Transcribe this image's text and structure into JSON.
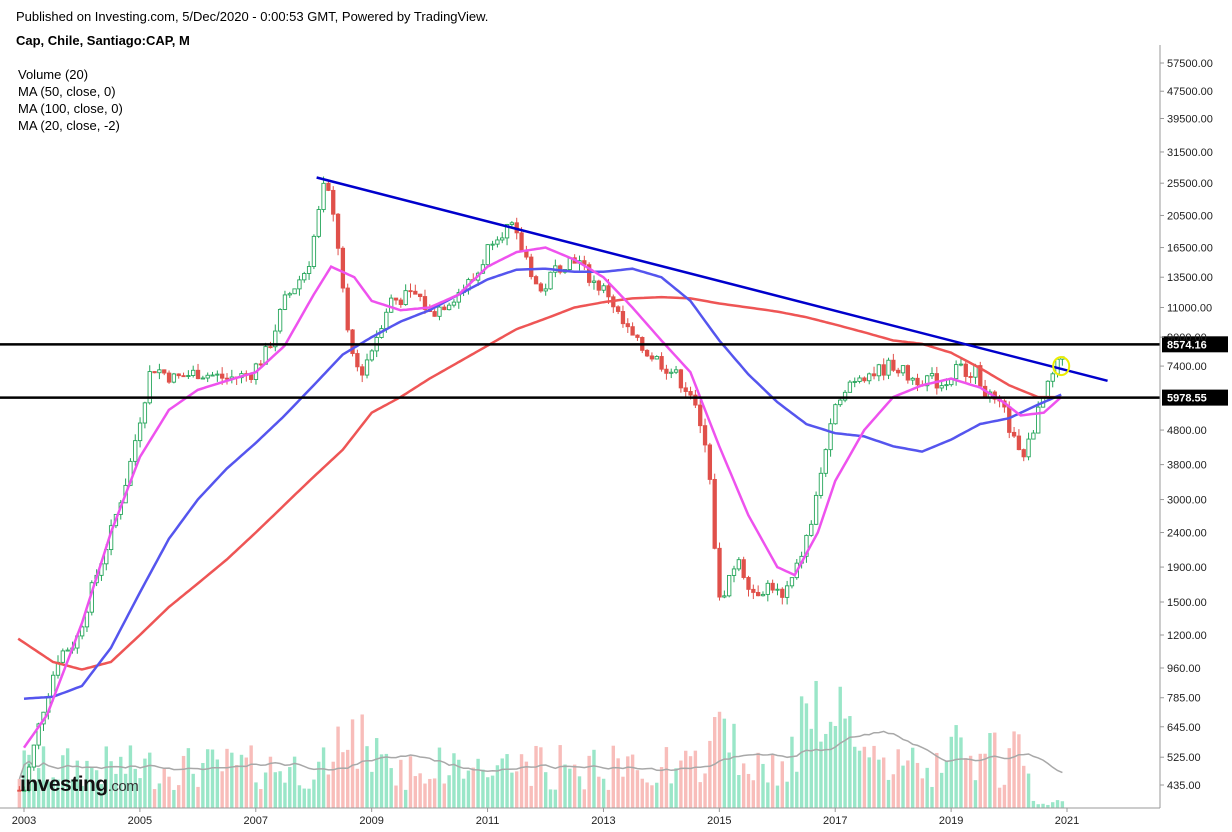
{
  "header": {
    "published": "Published on Investing.com, 5/Dec/2020 - 0:00:53 GMT, Powered by TradingView.",
    "symbol": "Cap, Chile, Santiago:CAP, M"
  },
  "legend": [
    "Volume (20)",
    "MA (50, close, 0)",
    "MA (100, close, 0)",
    "MA (20, close, -2)"
  ],
  "logo": {
    "main": "investing",
    "suffix": ".com"
  },
  "colors": {
    "up": "#26a65b",
    "down": "#e0504a",
    "up_fill": "#ffffff",
    "down_fill": "#e0504a",
    "vol_up": "#8fe3c2",
    "vol_down": "#f7b6b2",
    "vol_ma": "#a8a8a8",
    "ma20": "#ee52ee",
    "ma50": "#5555ee",
    "ma100": "#ee5555",
    "trendline": "#0000cc",
    "levels": "#000000",
    "highlight": "#eeee00"
  },
  "chart_data": {
    "type": "candlestick",
    "yscale": "log",
    "ylim": [
      400,
      65000
    ],
    "xlim": [
      2002.9,
      2021.9
    ],
    "x_ticks": [
      "2003",
      "2005",
      "2007",
      "2009",
      "2011",
      "2013",
      "2015",
      "2017",
      "2019",
      "2021"
    ],
    "y_ticks": [
      "57500.00",
      "47500.00",
      "39500.00",
      "31500.00",
      "25500.00",
      "20500.00",
      "16500.00",
      "13500.00",
      "11000.00",
      "9000.00",
      "7400.00",
      "4800.00",
      "3800.00",
      "3000.00",
      "2400.00",
      "1900.00",
      "1500.00",
      "1200.00",
      "960.00",
      "785.00",
      "645.00",
      "525.00",
      "435.00"
    ],
    "price_labels": [
      "8574.16",
      "5978.55"
    ],
    "horizontal_levels": [
      8574.16,
      5978.55
    ],
    "trendline": [
      [
        2008.05,
        26500
      ],
      [
        2021.7,
        6700
      ]
    ],
    "price_anchors": [
      [
        2003.0,
        420
      ],
      [
        2003.3,
        700
      ],
      [
        2003.6,
        1050
      ],
      [
        2003.9,
        1150
      ],
      [
        2004.2,
        1700
      ],
      [
        2004.5,
        2400
      ],
      [
        2004.8,
        3600
      ],
      [
        2005.0,
        5200
      ],
      [
        2005.2,
        7400
      ],
      [
        2005.6,
        6800
      ],
      [
        2006.0,
        7100
      ],
      [
        2006.5,
        6800
      ],
      [
        2006.9,
        7000
      ],
      [
        2007.2,
        8200
      ],
      [
        2007.5,
        11500
      ],
      [
        2007.9,
        14500
      ],
      [
        2008.2,
        26000
      ],
      [
        2008.4,
        18000
      ],
      [
        2008.6,
        8600
      ],
      [
        2008.8,
        7000
      ],
      [
        2009.0,
        8300
      ],
      [
        2009.3,
        11500
      ],
      [
        2009.8,
        12000
      ],
      [
        2010.0,
        10500
      ],
      [
        2010.4,
        11800
      ],
      [
        2010.8,
        13500
      ],
      [
        2011.1,
        18000
      ],
      [
        2011.4,
        19000
      ],
      [
        2011.7,
        15000
      ],
      [
        2011.9,
        12000
      ],
      [
        2012.2,
        14500
      ],
      [
        2012.5,
        15500
      ],
      [
        2012.8,
        13200
      ],
      [
        2013.1,
        12000
      ],
      [
        2013.3,
        10000
      ],
      [
        2013.6,
        8500
      ],
      [
        2013.9,
        7800
      ],
      [
        2014.2,
        7100
      ],
      [
        2014.5,
        6200
      ],
      [
        2014.8,
        4000
      ],
      [
        2015.0,
        1500
      ],
      [
        2015.3,
        2000
      ],
      [
        2015.6,
        1600
      ],
      [
        2015.9,
        1700
      ],
      [
        2016.1,
        1500
      ],
      [
        2016.3,
        1800
      ],
      [
        2016.6,
        2600
      ],
      [
        2016.8,
        4000
      ],
      [
        2017.1,
        6300
      ],
      [
        2017.4,
        7000
      ],
      [
        2017.7,
        7100
      ],
      [
        2018.0,
        7500
      ],
      [
        2018.3,
        6800
      ],
      [
        2018.6,
        6800
      ],
      [
        2018.9,
        6500
      ],
      [
        2019.1,
        7300
      ],
      [
        2019.4,
        7200
      ],
      [
        2019.7,
        5800
      ],
      [
        2019.9,
        5500
      ],
      [
        2020.2,
        3900
      ],
      [
        2020.4,
        4800
      ],
      [
        2020.6,
        6000
      ],
      [
        2020.8,
        7200
      ],
      [
        2020.95,
        8100
      ]
    ],
    "ma20_anchors": [
      [
        2003.0,
        560
      ],
      [
        2003.4,
        700
      ],
      [
        2004.0,
        1300
      ],
      [
        2004.5,
        2400
      ],
      [
        2005.0,
        4000
      ],
      [
        2005.5,
        5500
      ],
      [
        2006.0,
        6300
      ],
      [
        2006.5,
        6700
      ],
      [
        2007.0,
        7100
      ],
      [
        2007.5,
        8500
      ],
      [
        2008.0,
        12000
      ],
      [
        2008.3,
        14500
      ],
      [
        2008.7,
        13500
      ],
      [
        2009.0,
        11500
      ],
      [
        2009.5,
        10800
      ],
      [
        2010.0,
        11000
      ],
      [
        2010.5,
        12000
      ],
      [
        2011.0,
        14500
      ],
      [
        2011.5,
        16000
      ],
      [
        2012.0,
        16500
      ],
      [
        2012.5,
        15200
      ],
      [
        2013.0,
        13500
      ],
      [
        2013.5,
        11000
      ],
      [
        2014.0,
        8800
      ],
      [
        2014.5,
        7100
      ],
      [
        2015.0,
        4300
      ],
      [
        2015.5,
        2700
      ],
      [
        2016.0,
        1900
      ],
      [
        2016.3,
        1800
      ],
      [
        2016.7,
        2400
      ],
      [
        2017.0,
        3400
      ],
      [
        2017.5,
        4800
      ],
      [
        2018.0,
        6000
      ],
      [
        2018.5,
        6500
      ],
      [
        2019.0,
        6800
      ],
      [
        2019.5,
        6400
      ],
      [
        2019.9,
        5800
      ],
      [
        2020.2,
        5300
      ],
      [
        2020.6,
        5400
      ],
      [
        2020.9,
        6000
      ]
    ],
    "ma50_anchors": [
      [
        2003.0,
        780
      ],
      [
        2003.5,
        790
      ],
      [
        2004.0,
        850
      ],
      [
        2004.5,
        1100
      ],
      [
        2005.0,
        1600
      ],
      [
        2005.5,
        2300
      ],
      [
        2006.0,
        3000
      ],
      [
        2006.5,
        3700
      ],
      [
        2007.0,
        4400
      ],
      [
        2007.5,
        5300
      ],
      [
        2008.0,
        6500
      ],
      [
        2008.5,
        8000
      ],
      [
        2009.0,
        9000
      ],
      [
        2009.5,
        10000
      ],
      [
        2010.0,
        10800
      ],
      [
        2010.5,
        12000
      ],
      [
        2011.0,
        13300
      ],
      [
        2011.5,
        14200
      ],
      [
        2012.0,
        14300
      ],
      [
        2012.5,
        14000
      ],
      [
        2013.0,
        14000
      ],
      [
        2013.5,
        14300
      ],
      [
        2014.0,
        13500
      ],
      [
        2014.5,
        11500
      ],
      [
        2015.0,
        8800
      ],
      [
        2015.5,
        7000
      ],
      [
        2016.0,
        5800
      ],
      [
        2016.5,
        5000
      ],
      [
        2017.0,
        4700
      ],
      [
        2017.5,
        4600
      ],
      [
        2018.0,
        4300
      ],
      [
        2018.5,
        4150
      ],
      [
        2019.0,
        4500
      ],
      [
        2019.5,
        5000
      ],
      [
        2020.0,
        5200
      ],
      [
        2020.5,
        5700
      ],
      [
        2020.9,
        6100
      ]
    ],
    "ma100_anchors": [
      [
        2002.9,
        1170
      ],
      [
        2003.5,
        1000
      ],
      [
        2004.0,
        950
      ],
      [
        2004.5,
        1000
      ],
      [
        2005.0,
        1200
      ],
      [
        2005.5,
        1450
      ],
      [
        2006.0,
        1700
      ],
      [
        2006.5,
        2000
      ],
      [
        2007.0,
        2400
      ],
      [
        2007.5,
        2900
      ],
      [
        2008.0,
        3500
      ],
      [
        2008.5,
        4200
      ],
      [
        2009.0,
        5400
      ],
      [
        2009.5,
        6000
      ],
      [
        2010.0,
        6800
      ],
      [
        2010.5,
        7600
      ],
      [
        2011.0,
        8500
      ],
      [
        2011.5,
        9500
      ],
      [
        2012.0,
        10200
      ],
      [
        2012.5,
        11000
      ],
      [
        2013.0,
        11400
      ],
      [
        2013.5,
        11700
      ],
      [
        2014.0,
        11800
      ],
      [
        2014.5,
        11700
      ],
      [
        2015.0,
        11300
      ],
      [
        2015.5,
        11000
      ],
      [
        2016.0,
        10700
      ],
      [
        2016.5,
        10300
      ],
      [
        2017.0,
        9800
      ],
      [
        2017.5,
        9300
      ],
      [
        2018.0,
        8800
      ],
      [
        2018.5,
        8600
      ],
      [
        2019.0,
        8100
      ],
      [
        2019.5,
        7300
      ],
      [
        2020.0,
        6500
      ],
      [
        2020.5,
        6000
      ],
      [
        2020.9,
        6000
      ]
    ]
  }
}
